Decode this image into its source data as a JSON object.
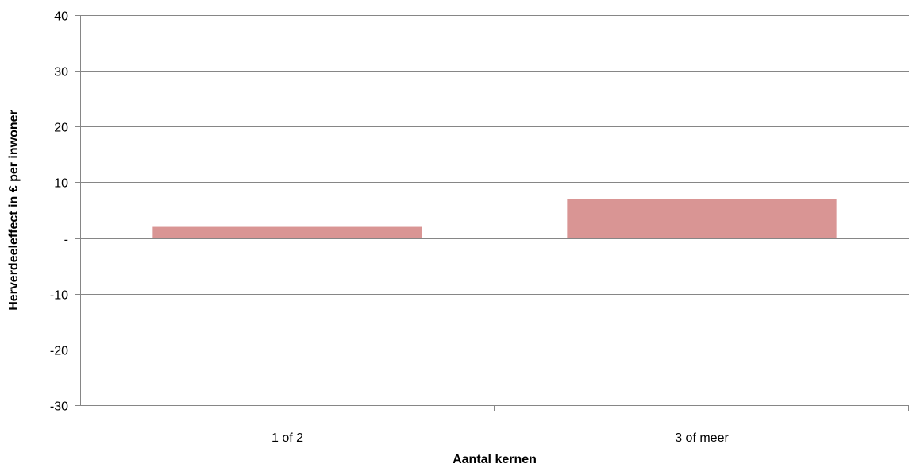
{
  "chart_data": {
    "type": "bar",
    "categories": [
      "1 of 2",
      "3 of meer"
    ],
    "values": [
      2,
      7
    ],
    "xlabel": "Aantal kernen",
    "ylabel": "Herverdeeleffect in € per inwoner",
    "ylim": [
      -30,
      40
    ],
    "yticks": [
      {
        "value": 40,
        "label": "40"
      },
      {
        "value": 30,
        "label": "30"
      },
      {
        "value": 20,
        "label": "20"
      },
      {
        "value": 10,
        "label": "10"
      },
      {
        "value": 0,
        "label": "-"
      },
      {
        "value": -10,
        "label": "-10"
      },
      {
        "value": -20,
        "label": "-20"
      },
      {
        "value": -30,
        "label": "-30"
      }
    ],
    "grid": true,
    "legend": "none",
    "colors": {
      "bar": "#d99594",
      "grid": "#868686",
      "axis": "#868686"
    }
  }
}
